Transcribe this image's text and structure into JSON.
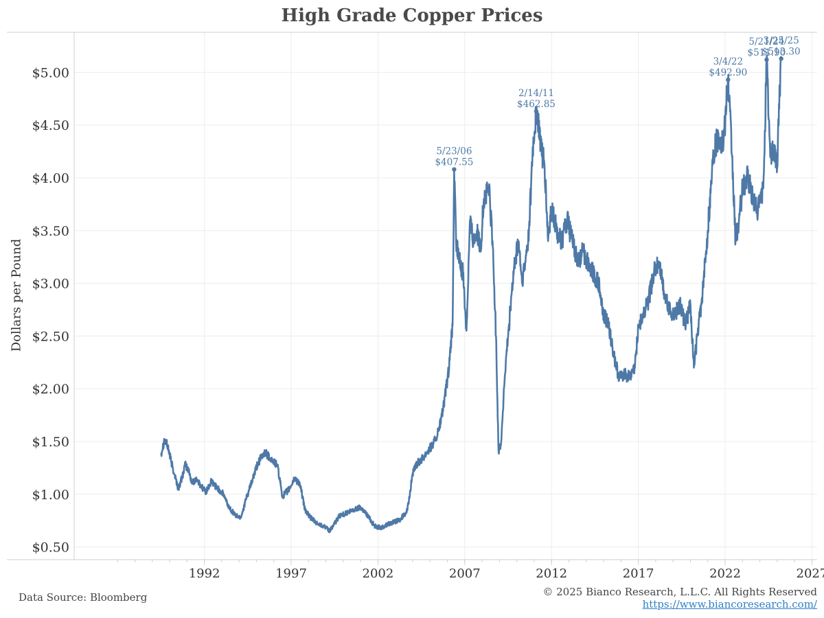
{
  "chart_data": {
    "type": "line",
    "title": "High Grade Copper Prices",
    "xlabel": "",
    "ylabel": "Dollars per Pound",
    "xlim": [
      1984.5,
      2027.3
    ],
    "ylim": [
      0.38,
      5.38
    ],
    "x_ticks": [
      1992,
      1997,
      2002,
      2007,
      2012,
      2017,
      2022,
      2027
    ],
    "y_ticks": [
      {
        "value": 0.5,
        "label": "$0.50"
      },
      {
        "value": 1.0,
        "label": "$1.00"
      },
      {
        "value": 1.5,
        "label": "$1.50"
      },
      {
        "value": 2.0,
        "label": "$2.00"
      },
      {
        "value": 2.5,
        "label": "$2.50"
      },
      {
        "value": 3.0,
        "label": "$3.00"
      },
      {
        "value": 3.5,
        "label": "$3.50"
      },
      {
        "value": 4.0,
        "label": "$4.00"
      },
      {
        "value": 4.5,
        "label": "$4.50"
      },
      {
        "value": 5.0,
        "label": "$5.00"
      }
    ],
    "grid": true,
    "series": [
      {
        "name": "High Grade Copper",
        "color": "#4e79a7",
        "x": [
          1989.5,
          1989.7,
          1989.9,
          1990.1,
          1990.3,
          1990.5,
          1990.7,
          1990.9,
          1991.1,
          1991.3,
          1991.5,
          1991.8,
          1992.1,
          1992.4,
          1992.8,
          1993.1,
          1993.4,
          1993.8,
          1994.1,
          1994.4,
          1994.8,
          1995.1,
          1995.5,
          1995.9,
          1996.2,
          1996.5,
          1996.9,
          1997.2,
          1997.5,
          1997.8,
          1998.1,
          1998.5,
          1998.9,
          1999.2,
          1999.5,
          1999.8,
          2000.2,
          2000.6,
          2001.0,
          2001.4,
          2001.8,
          2002.2,
          2002.6,
          2003.0,
          2003.3,
          2003.7,
          2004.0,
          2004.3,
          2004.6,
          2004.9,
          2005.2,
          2005.5,
          2005.8,
          2006.1,
          2006.3,
          2006.39,
          2006.5,
          2006.7,
          2006.9,
          2007.1,
          2007.3,
          2007.5,
          2007.7,
          2007.9,
          2008.1,
          2008.4,
          2008.6,
          2008.8,
          2008.95,
          2009.1,
          2009.3,
          2009.5,
          2009.7,
          2009.9,
          2010.1,
          2010.3,
          2010.5,
          2010.7,
          2010.9,
          2011.12,
          2011.4,
          2011.6,
          2011.8,
          2012.0,
          2012.3,
          2012.6,
          2012.9,
          2013.2,
          2013.5,
          2013.8,
          2014.1,
          2014.4,
          2014.7,
          2015.0,
          2015.3,
          2015.6,
          2015.9,
          2016.2,
          2016.5,
          2016.8,
          2017.0,
          2017.3,
          2017.6,
          2017.9,
          2018.2,
          2018.5,
          2018.8,
          2019.1,
          2019.4,
          2019.7,
          2020.0,
          2020.2,
          2020.4,
          2020.7,
          2021.0,
          2021.3,
          2021.6,
          2021.9,
          2022.17,
          2022.4,
          2022.6,
          2022.8,
          2023.0,
          2023.3,
          2023.6,
          2023.9,
          2024.2,
          2024.39,
          2024.6,
          2024.8,
          2025.0,
          2025.1,
          2025.23
        ],
        "values": [
          1.38,
          1.52,
          1.45,
          1.3,
          1.18,
          1.05,
          1.15,
          1.28,
          1.22,
          1.1,
          1.15,
          1.08,
          1.02,
          1.12,
          1.05,
          1.0,
          0.88,
          0.8,
          0.78,
          0.95,
          1.15,
          1.3,
          1.4,
          1.32,
          1.28,
          0.98,
          1.05,
          1.15,
          1.1,
          0.85,
          0.78,
          0.72,
          0.7,
          0.65,
          0.72,
          0.8,
          0.82,
          0.85,
          0.88,
          0.8,
          0.7,
          0.68,
          0.72,
          0.74,
          0.76,
          0.85,
          1.2,
          1.3,
          1.35,
          1.42,
          1.48,
          1.6,
          1.85,
          2.2,
          2.6,
          4.08,
          3.4,
          3.2,
          3.1,
          2.55,
          3.6,
          3.4,
          3.5,
          3.3,
          3.8,
          3.9,
          3.4,
          2.5,
          1.4,
          1.5,
          2.1,
          2.5,
          2.9,
          3.2,
          3.4,
          3.0,
          3.2,
          3.5,
          4.2,
          4.63,
          4.3,
          4.1,
          3.4,
          3.7,
          3.5,
          3.4,
          3.6,
          3.4,
          3.2,
          3.3,
          3.2,
          3.1,
          3.0,
          2.7,
          2.6,
          2.3,
          2.1,
          2.15,
          2.1,
          2.2,
          2.6,
          2.7,
          2.85,
          3.1,
          3.2,
          2.9,
          2.75,
          2.7,
          2.8,
          2.6,
          2.8,
          2.2,
          2.5,
          2.9,
          3.5,
          4.2,
          4.4,
          4.3,
          4.93,
          4.2,
          3.4,
          3.6,
          3.9,
          4.0,
          3.8,
          3.7,
          3.9,
          5.12,
          4.2,
          4.3,
          4.1,
          4.7,
          5.13
        ]
      }
    ],
    "annotations": [
      {
        "x": 2006.39,
        "y": 4.08,
        "date": "5/23/06",
        "value": "$407.55"
      },
      {
        "x": 2011.12,
        "y": 4.63,
        "date": "2/14/11",
        "value": "$462.85"
      },
      {
        "x": 2022.17,
        "y": 4.93,
        "date": "3/4/22",
        "value": "$492.90"
      },
      {
        "x": 2024.39,
        "y": 5.12,
        "date": "5/21/24",
        "value": "$511.90"
      },
      {
        "x": 2025.23,
        "y": 5.13,
        "date": "3/25/25",
        "value": "$513.30"
      }
    ]
  },
  "footer": {
    "source": "Data Source: Bloomberg",
    "copyright": "© 2025 Bianco Research, L.L.C. All Rights Reserved",
    "url": "https://www.biancoresearch.com/"
  },
  "colors": {
    "line": "#4e79a7",
    "grid": "#ececec",
    "axis": "#cfcfcf"
  }
}
